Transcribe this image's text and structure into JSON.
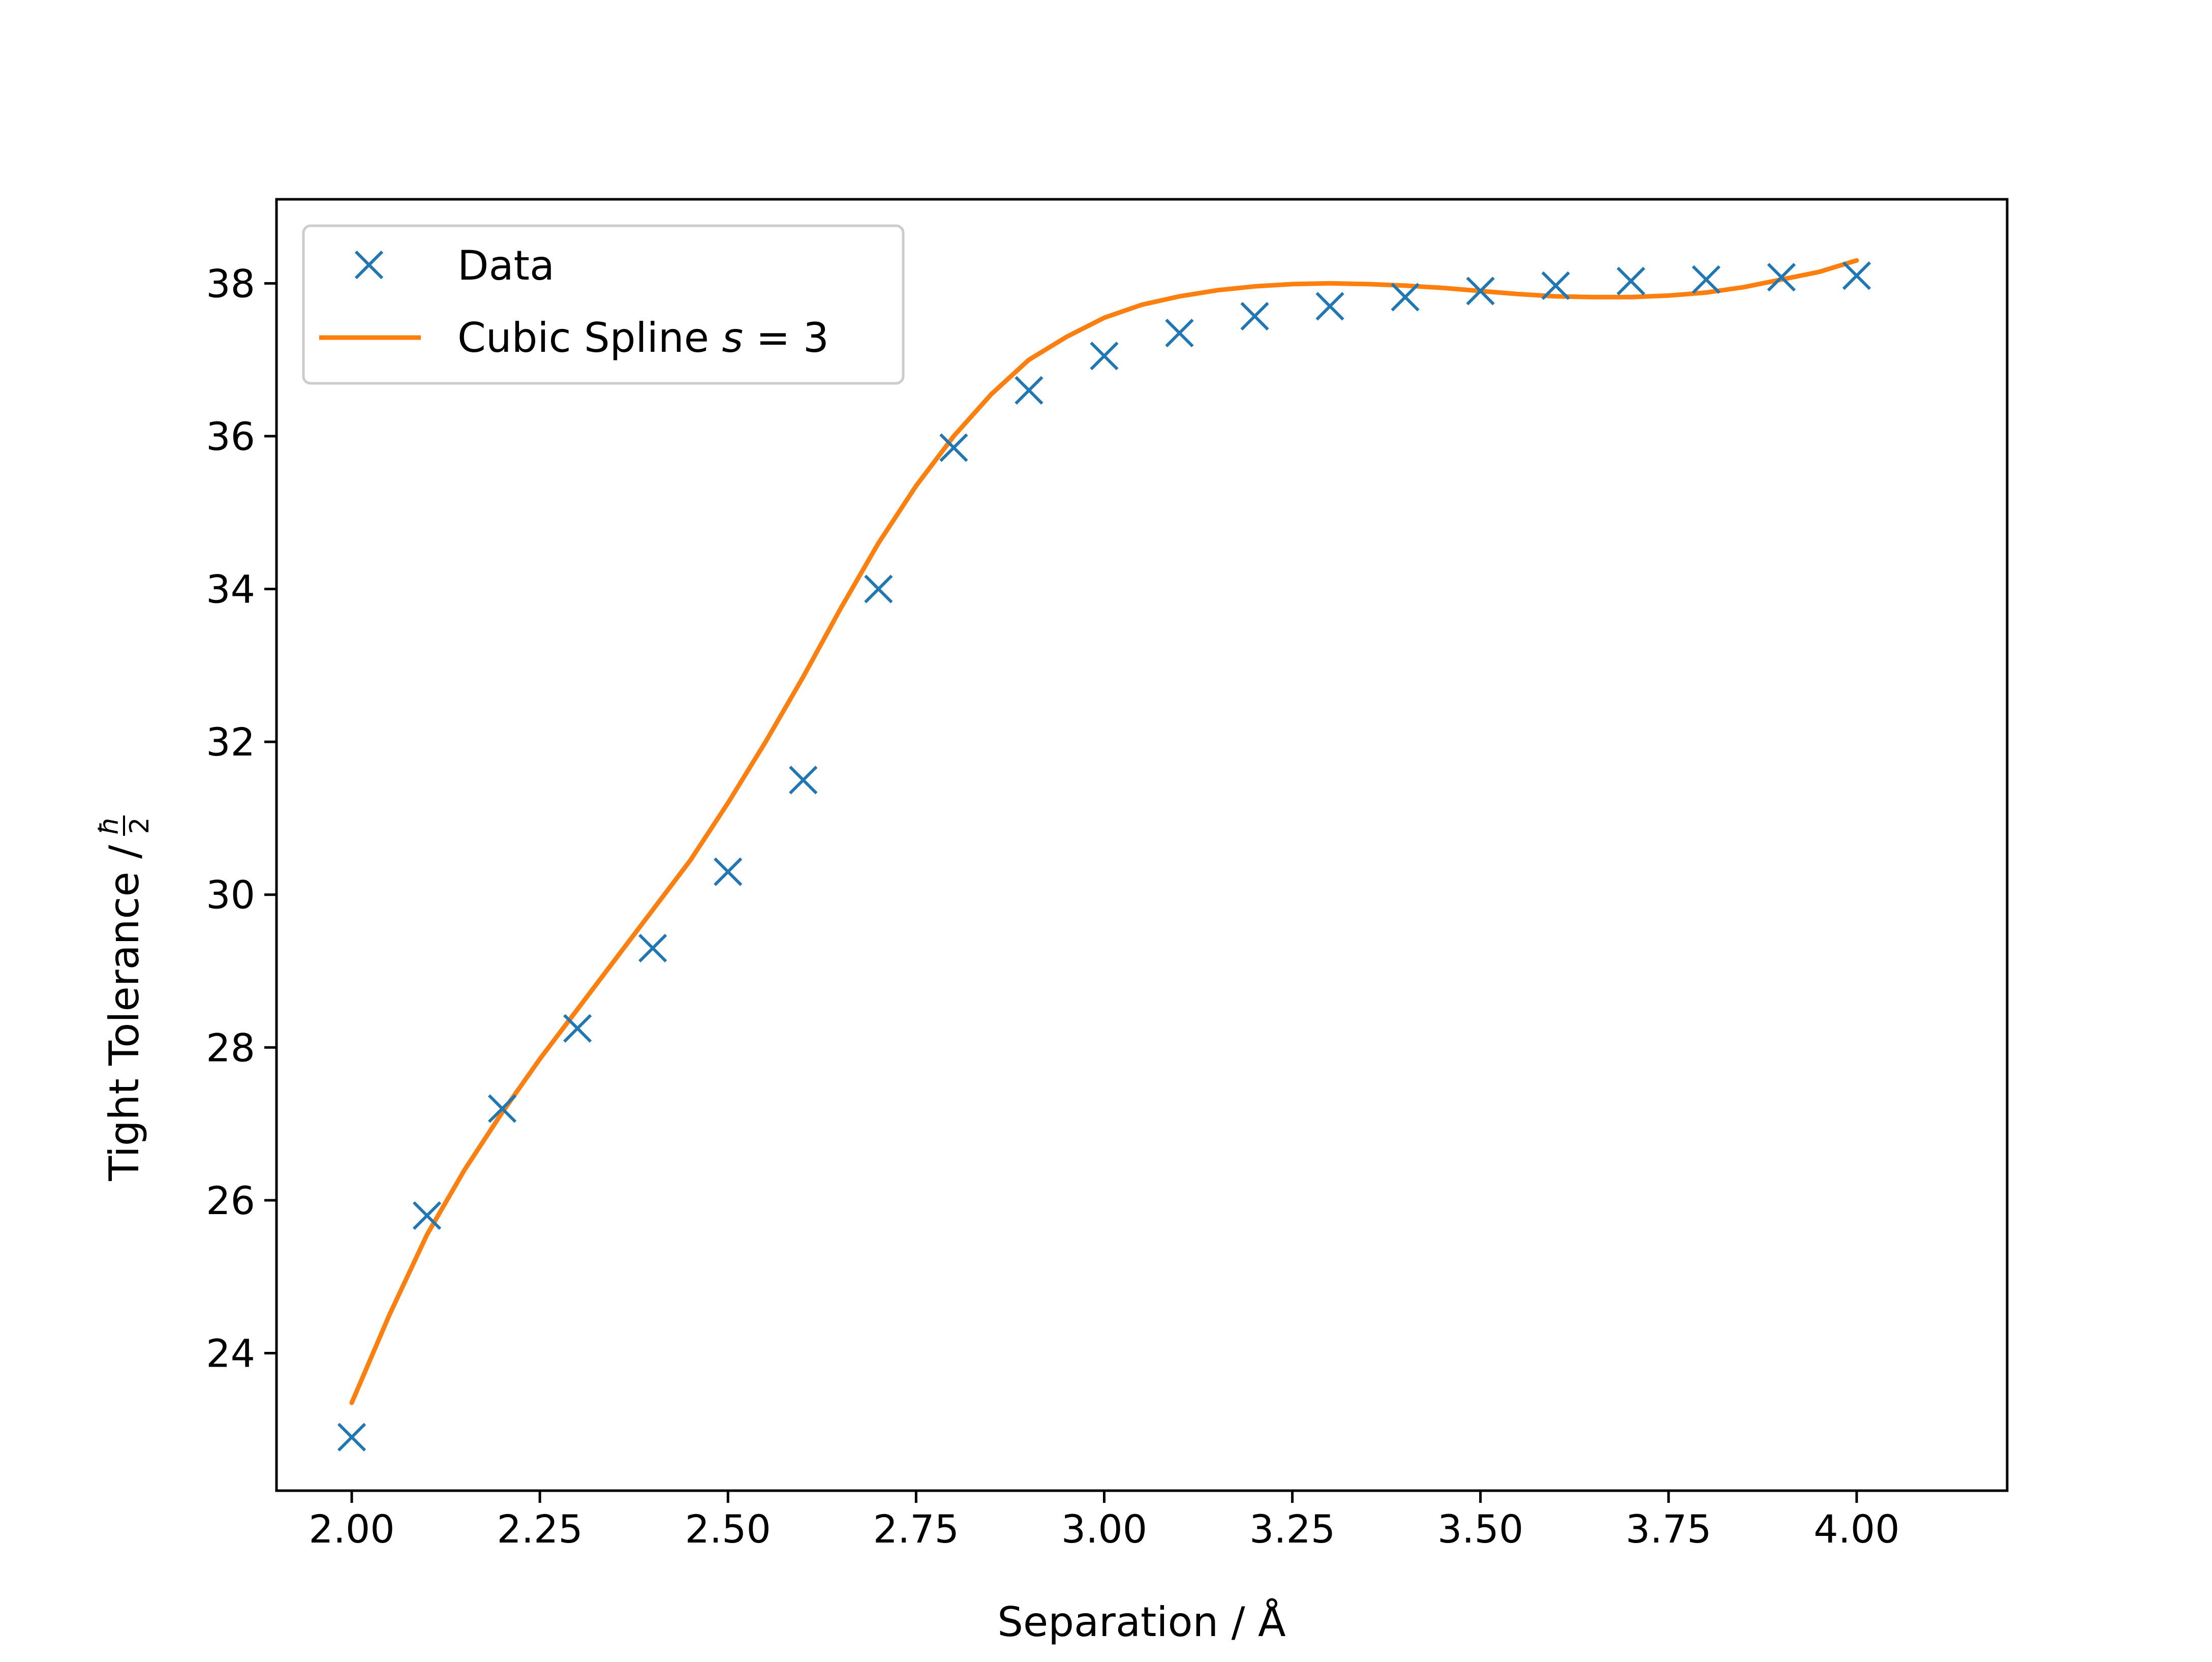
{
  "chart_data": {
    "type": "scatter",
    "xlabel": "Separation / Å",
    "ylabel": "Tight Tolerance / ",
    "ylabel_unit": {
      "numerator": "ħ",
      "denominator": "2"
    },
    "xlim": [
      1.9,
      4.2
    ],
    "ylim": [
      22.2,
      39.1
    ],
    "x_ticks": [
      "2.00",
      "2.25",
      "2.50",
      "2.75",
      "3.00",
      "3.25",
      "3.50",
      "3.75",
      "4.00"
    ],
    "x_tick_values": [
      2.0,
      2.25,
      2.5,
      2.75,
      3.0,
      3.25,
      3.5,
      3.75,
      4.0
    ],
    "y_ticks": [
      "24",
      "26",
      "28",
      "30",
      "32",
      "34",
      "36",
      "38"
    ],
    "y_tick_values": [
      24,
      26,
      28,
      30,
      32,
      34,
      36,
      38
    ],
    "grid": false,
    "legend_position": "upper-left",
    "series": [
      {
        "name": "Data",
        "type": "scatter",
        "marker": "x",
        "color": "#1f77b4",
        "x": [
          2.0,
          2.1,
          2.2,
          2.3,
          2.4,
          2.5,
          2.6,
          2.7,
          2.8,
          2.9,
          3.0,
          3.1,
          3.2,
          3.3,
          3.4,
          3.5,
          3.6,
          3.7,
          3.8,
          3.9,
          4.0
        ],
        "y": [
          22.9,
          25.8,
          27.2,
          28.25,
          29.3,
          30.3,
          31.5,
          34.0,
          35.85,
          36.6,
          37.05,
          37.35,
          37.57,
          37.7,
          37.82,
          37.9,
          37.97,
          38.03,
          38.05,
          38.08,
          38.1
        ]
      },
      {
        "name": "Cubic Spline s = 3",
        "legend_label": {
          "prefix": "Cubic Spline ",
          "var": "s",
          "eq": " = 3"
        },
        "type": "line",
        "color": "#ff7f0e",
        "x": [
          2.0,
          2.05,
          2.1,
          2.15,
          2.2,
          2.25,
          2.3,
          2.35,
          2.4,
          2.45,
          2.5,
          2.55,
          2.6,
          2.65,
          2.7,
          2.75,
          2.8,
          2.85,
          2.9,
          2.95,
          3.0,
          3.05,
          3.1,
          3.15,
          3.2,
          3.25,
          3.3,
          3.35,
          3.4,
          3.45,
          3.5,
          3.55,
          3.6,
          3.65,
          3.7,
          3.75,
          3.8,
          3.85,
          3.9,
          3.95,
          4.0
        ],
        "y": [
          23.35,
          24.5,
          25.55,
          26.4,
          27.15,
          27.85,
          28.5,
          29.15,
          29.8,
          30.45,
          31.2,
          32.0,
          32.85,
          33.75,
          34.6,
          35.35,
          36.0,
          36.55,
          37.0,
          37.3,
          37.55,
          37.72,
          37.83,
          37.91,
          37.96,
          37.99,
          38.0,
          37.99,
          37.97,
          37.94,
          37.9,
          37.86,
          37.83,
          37.82,
          37.82,
          37.84,
          37.88,
          37.95,
          38.05,
          38.15,
          38.3
        ]
      }
    ]
  }
}
